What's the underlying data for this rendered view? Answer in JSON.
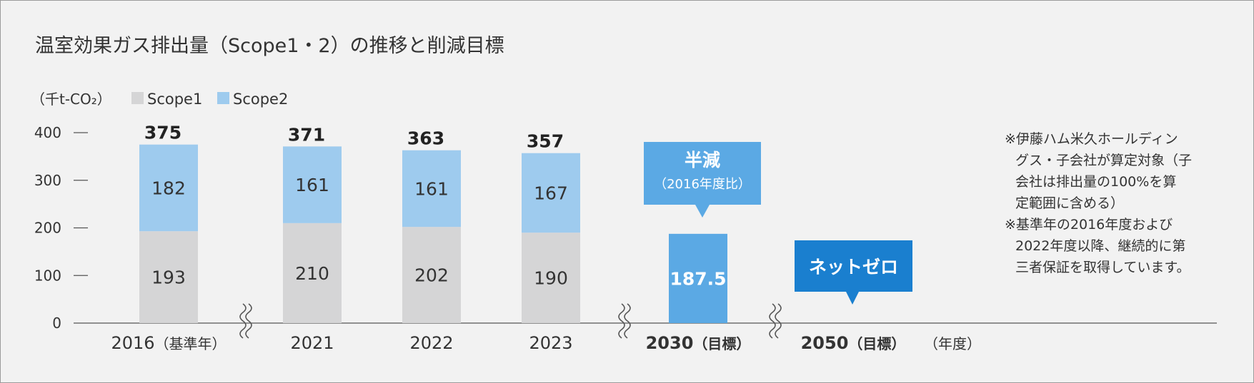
{
  "colors": {
    "scope1": "#d5d5d6",
    "scope2": "#9ecbee",
    "target_bar": "#5ba9e4",
    "half_callout": "#5ba9e4",
    "netzero_callout": "#1a7fcf",
    "target_2030_text": "#5ba9e4",
    "target_2050_text": "#1a7fcf",
    "axis": "#555555"
  },
  "chart_data": {
    "type": "bar",
    "stacked": true,
    "title": "温室効果ガス排出量（Scope1・2）の推移と削減目標",
    "unit": "（千t-CO₂）",
    "ylabel": "（千t-CO₂）",
    "xlabel": "（年度）",
    "ylim": [
      0,
      400
    ],
    "yticks": [
      "0",
      "100",
      "200",
      "300",
      "400"
    ],
    "grid": false,
    "legend_position": "top-left",
    "categories": [
      "2016",
      "2021",
      "2022",
      "2023",
      "2030",
      "2050"
    ],
    "category_labels": [
      {
        "main": "2016",
        "sub": "（基準年）"
      },
      {
        "main": "2021",
        "sub": ""
      },
      {
        "main": "2022",
        "sub": ""
      },
      {
        "main": "2023",
        "sub": ""
      },
      {
        "main": "2030",
        "sub": "（目標）"
      },
      {
        "main": "2050",
        "sub": "（目標）"
      }
    ],
    "series": [
      {
        "name": "Scope1",
        "values": [
          193,
          210,
          202,
          190,
          null,
          null
        ]
      },
      {
        "name": "Scope2",
        "values": [
          182,
          161,
          161,
          167,
          null,
          null
        ]
      }
    ],
    "totals": [
      375,
      371,
      363,
      357,
      null,
      null
    ],
    "targets": {
      "t2030": {
        "value": 187.5,
        "label": "187.5",
        "callout_main": "半減",
        "callout_sub": "（2016年度比）"
      },
      "t2050": {
        "value": 0,
        "callout_main": "ネットゼロ"
      }
    },
    "notes": [
      "※伊藤ハム米久ホールディン",
      "グス・子会社が算定対象（子",
      "会社は排出量の100%を算",
      "定範囲に含める）",
      "※基準年の2016年度および",
      "2022年度以降、継続的に第",
      "三者保証を取得しています。"
    ]
  }
}
